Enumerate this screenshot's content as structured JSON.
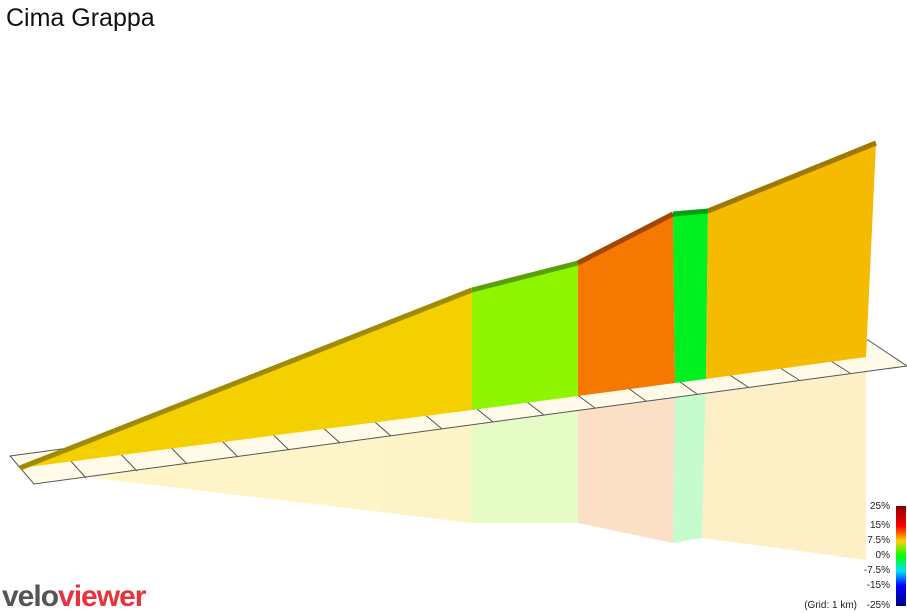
{
  "header": {
    "title": "Cima Grappa"
  },
  "legend": {
    "labels": [
      "25%",
      "15%",
      "7.5%",
      "0%",
      "-7.5%",
      "-15%",
      "-25%"
    ],
    "grid_note": "(Grid: 1 km)"
  },
  "logo": {
    "part1": "velo",
    "part2": "viewer"
  }
}
